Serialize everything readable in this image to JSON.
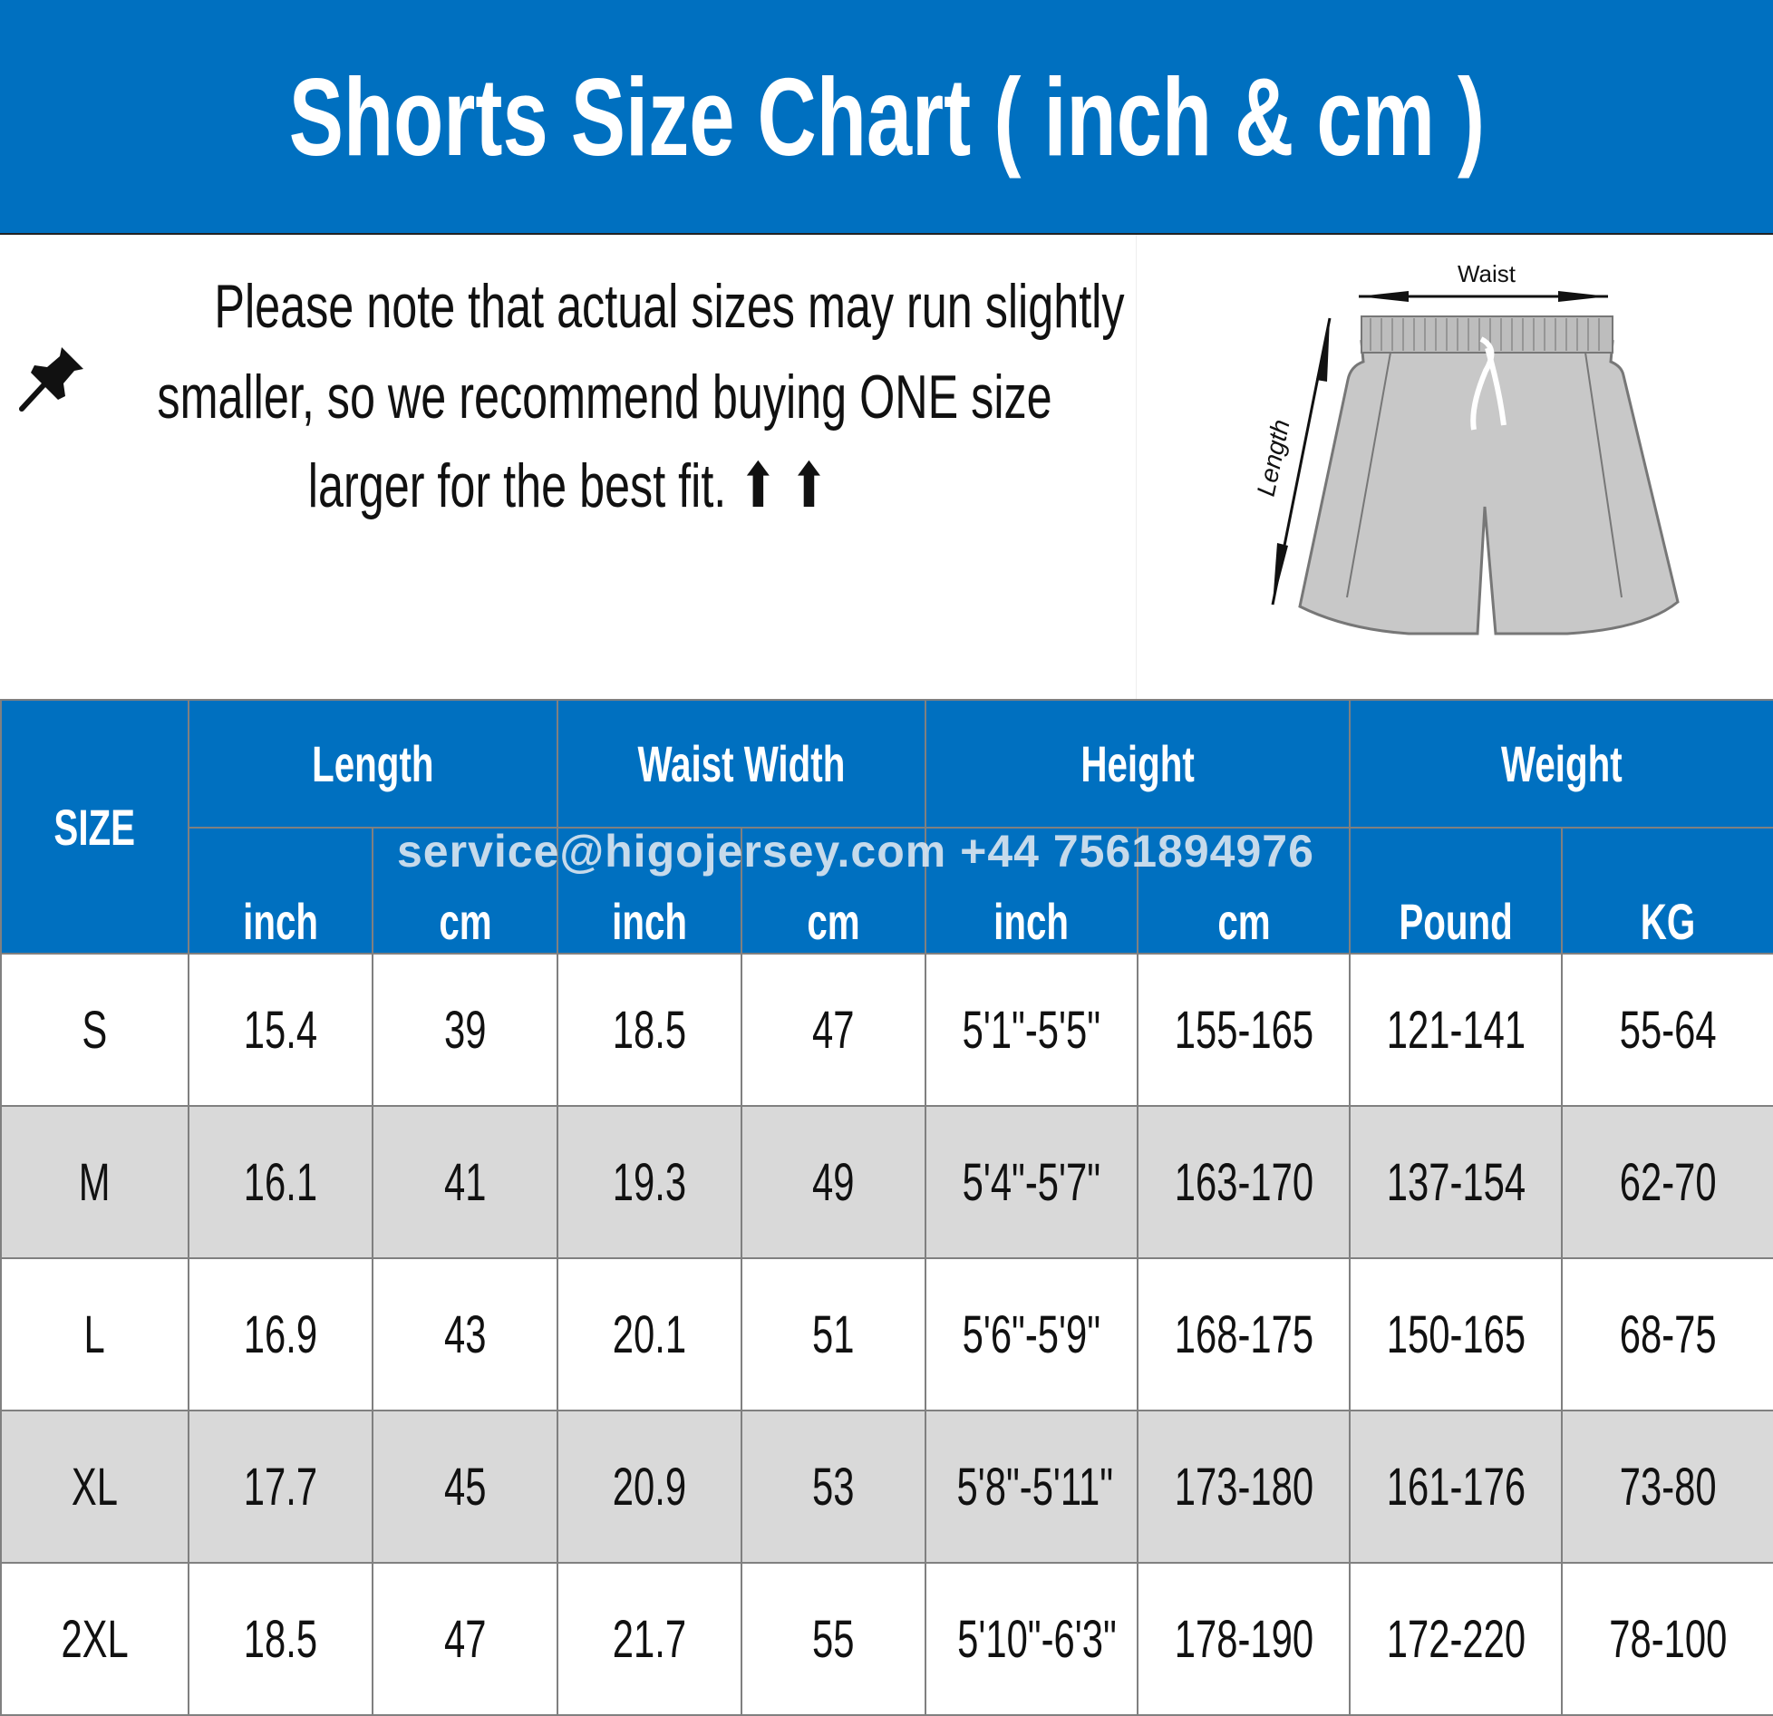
{
  "title": "Shorts Size Chart ( inch & cm )",
  "note": {
    "icon": "pushpin-icon",
    "lines": [
      "Please note that actual sizes may run slightly",
      "smaller, so we recommend buying ONE size",
      "larger for the best fit. ⬆ ⬆"
    ]
  },
  "illustration": {
    "waist_label": "Waist",
    "length_label": "Length"
  },
  "table": {
    "size_header": "SIZE",
    "groups": [
      "Length",
      "Waist Width",
      "Height",
      "Weight"
    ],
    "units": [
      "inch",
      "cm",
      "inch",
      "cm",
      "inch",
      "cm",
      "Pound",
      "KG"
    ],
    "rows": [
      [
        "S",
        "15.4",
        "39",
        "18.5",
        "47",
        "5'1\"-5'5\"",
        "155-165",
        "121-141",
        "55-64"
      ],
      [
        "M",
        "16.1",
        "41",
        "19.3",
        "49",
        "5'4\"-5'7\"",
        "163-170",
        "137-154",
        "62-70"
      ],
      [
        "L",
        "16.9",
        "43",
        "20.1",
        "51",
        "5'6\"-5'9\"",
        "168-175",
        "150-165",
        "68-75"
      ],
      [
        "XL",
        "17.7",
        "45",
        "20.9",
        "53",
        "5'8\"-5'11\"",
        "173-180",
        "161-176",
        "73-80"
      ],
      [
        "2XL",
        "18.5",
        "47",
        "21.7",
        "55",
        "5'10\"-6'3\"",
        "178-190",
        "172-220",
        "78-100"
      ]
    ]
  },
  "watermark": "service@higojersey.com +44 7561894976",
  "colors": {
    "header_blue": "#0070c0",
    "alt_row": "#d9d9d9",
    "grid": "#808080"
  }
}
